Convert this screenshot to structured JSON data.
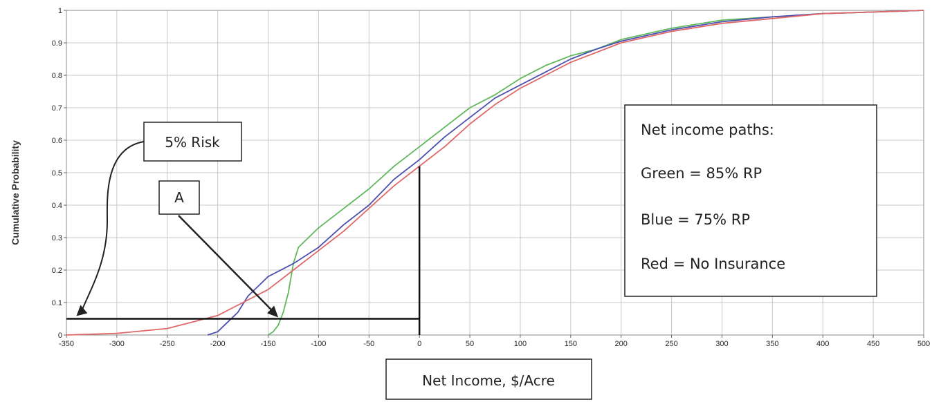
{
  "chart_data": {
    "type": "line",
    "title": "",
    "xlabel": "Net Income, $/Acre",
    "ylabel": "Cumulative Probability",
    "xlim": [
      -350,
      500
    ],
    "ylim": [
      0,
      1
    ],
    "x_ticks": [
      -350,
      -300,
      -250,
      -200,
      -150,
      -100,
      -50,
      0,
      50,
      100,
      150,
      200,
      250,
      300,
      350,
      400,
      450,
      500
    ],
    "y_ticks": [
      0,
      0.1,
      0.2,
      0.3,
      0.4,
      0.5,
      0.6,
      0.7,
      0.8,
      0.9,
      1
    ],
    "x_tick_labels": [
      "-350",
      "-300",
      "-250",
      "-200",
      "-150",
      "-100",
      "-50",
      "0",
      "50",
      "100",
      "150",
      "200",
      "250",
      "300",
      "350",
      "400",
      "450",
      "500"
    ],
    "y_tick_labels": [
      "0",
      "0.1",
      "0.2",
      "0.3",
      "0.4",
      "0.5",
      "0.6",
      "0.7",
      "0.8",
      "0.9",
      "1"
    ],
    "grid": true,
    "series": [
      {
        "label": "Green = 85% RP",
        "color": "#5fb85a",
        "points": [
          [
            -150,
            0
          ],
          [
            -145,
            0.01
          ],
          [
            -140,
            0.03
          ],
          [
            -135,
            0.07
          ],
          [
            -130,
            0.13
          ],
          [
            -125,
            0.22
          ],
          [
            -120,
            0.27
          ],
          [
            -110,
            0.3
          ],
          [
            -100,
            0.33
          ],
          [
            -75,
            0.39
          ],
          [
            -50,
            0.45
          ],
          [
            -25,
            0.52
          ],
          [
            0,
            0.58
          ],
          [
            25,
            0.64
          ],
          [
            50,
            0.7
          ],
          [
            75,
            0.74
          ],
          [
            100,
            0.79
          ],
          [
            125,
            0.83
          ],
          [
            150,
            0.86
          ],
          [
            175,
            0.88
          ],
          [
            200,
            0.91
          ],
          [
            250,
            0.945
          ],
          [
            300,
            0.97
          ],
          [
            350,
            0.98
          ],
          [
            400,
            0.99
          ],
          [
            450,
            0.995
          ],
          [
            500,
            1
          ]
        ]
      },
      {
        "label": "Blue = 75% RP",
        "color": "#4b4fb0",
        "points": [
          [
            -210,
            0
          ],
          [
            -200,
            0.01
          ],
          [
            -190,
            0.04
          ],
          [
            -180,
            0.07
          ],
          [
            -170,
            0.12
          ],
          [
            -160,
            0.15
          ],
          [
            -150,
            0.18
          ],
          [
            -125,
            0.22
          ],
          [
            -100,
            0.27
          ],
          [
            -75,
            0.34
          ],
          [
            -50,
            0.4
          ],
          [
            -25,
            0.48
          ],
          [
            0,
            0.54
          ],
          [
            25,
            0.61
          ],
          [
            50,
            0.67
          ],
          [
            75,
            0.73
          ],
          [
            100,
            0.77
          ],
          [
            125,
            0.81
          ],
          [
            150,
            0.85
          ],
          [
            175,
            0.88
          ],
          [
            200,
            0.905
          ],
          [
            250,
            0.94
          ],
          [
            300,
            0.965
          ],
          [
            350,
            0.98
          ],
          [
            400,
            0.99
          ],
          [
            450,
            0.995
          ],
          [
            500,
            1
          ]
        ]
      },
      {
        "label": "Red = No Insurance",
        "color": "#e06767",
        "points": [
          [
            -350,
            0
          ],
          [
            -300,
            0.005
          ],
          [
            -250,
            0.02
          ],
          [
            -225,
            0.04
          ],
          [
            -200,
            0.06
          ],
          [
            -175,
            0.1
          ],
          [
            -150,
            0.14
          ],
          [
            -125,
            0.2
          ],
          [
            -100,
            0.26
          ],
          [
            -75,
            0.32
          ],
          [
            -50,
            0.39
          ],
          [
            -25,
            0.46
          ],
          [
            0,
            0.52
          ],
          [
            25,
            0.58
          ],
          [
            50,
            0.65
          ],
          [
            75,
            0.71
          ],
          [
            100,
            0.76
          ],
          [
            125,
            0.8
          ],
          [
            150,
            0.84
          ],
          [
            175,
            0.87
          ],
          [
            200,
            0.9
          ],
          [
            250,
            0.935
          ],
          [
            300,
            0.96
          ],
          [
            350,
            0.975
          ],
          [
            400,
            0.99
          ],
          [
            450,
            0.995
          ],
          [
            500,
            1
          ]
        ]
      }
    ],
    "reference_lines": {
      "horizontal_y": 0.05,
      "vertical_x": 0,
      "vertical_y_top": 0.52
    },
    "annotations": [
      {
        "id": "risk",
        "text": "5% Risk",
        "arrow_target": [
          -347,
          0.05
        ]
      },
      {
        "id": "a",
        "text": "A",
        "arrow_target": [
          -140,
          0.05
        ]
      }
    ],
    "legend": {
      "placement": "right",
      "title": "Net income paths:",
      "entries": [
        "Green = 85% RP",
        "Blue = 75% RP",
        "Red = No Insurance"
      ]
    }
  }
}
